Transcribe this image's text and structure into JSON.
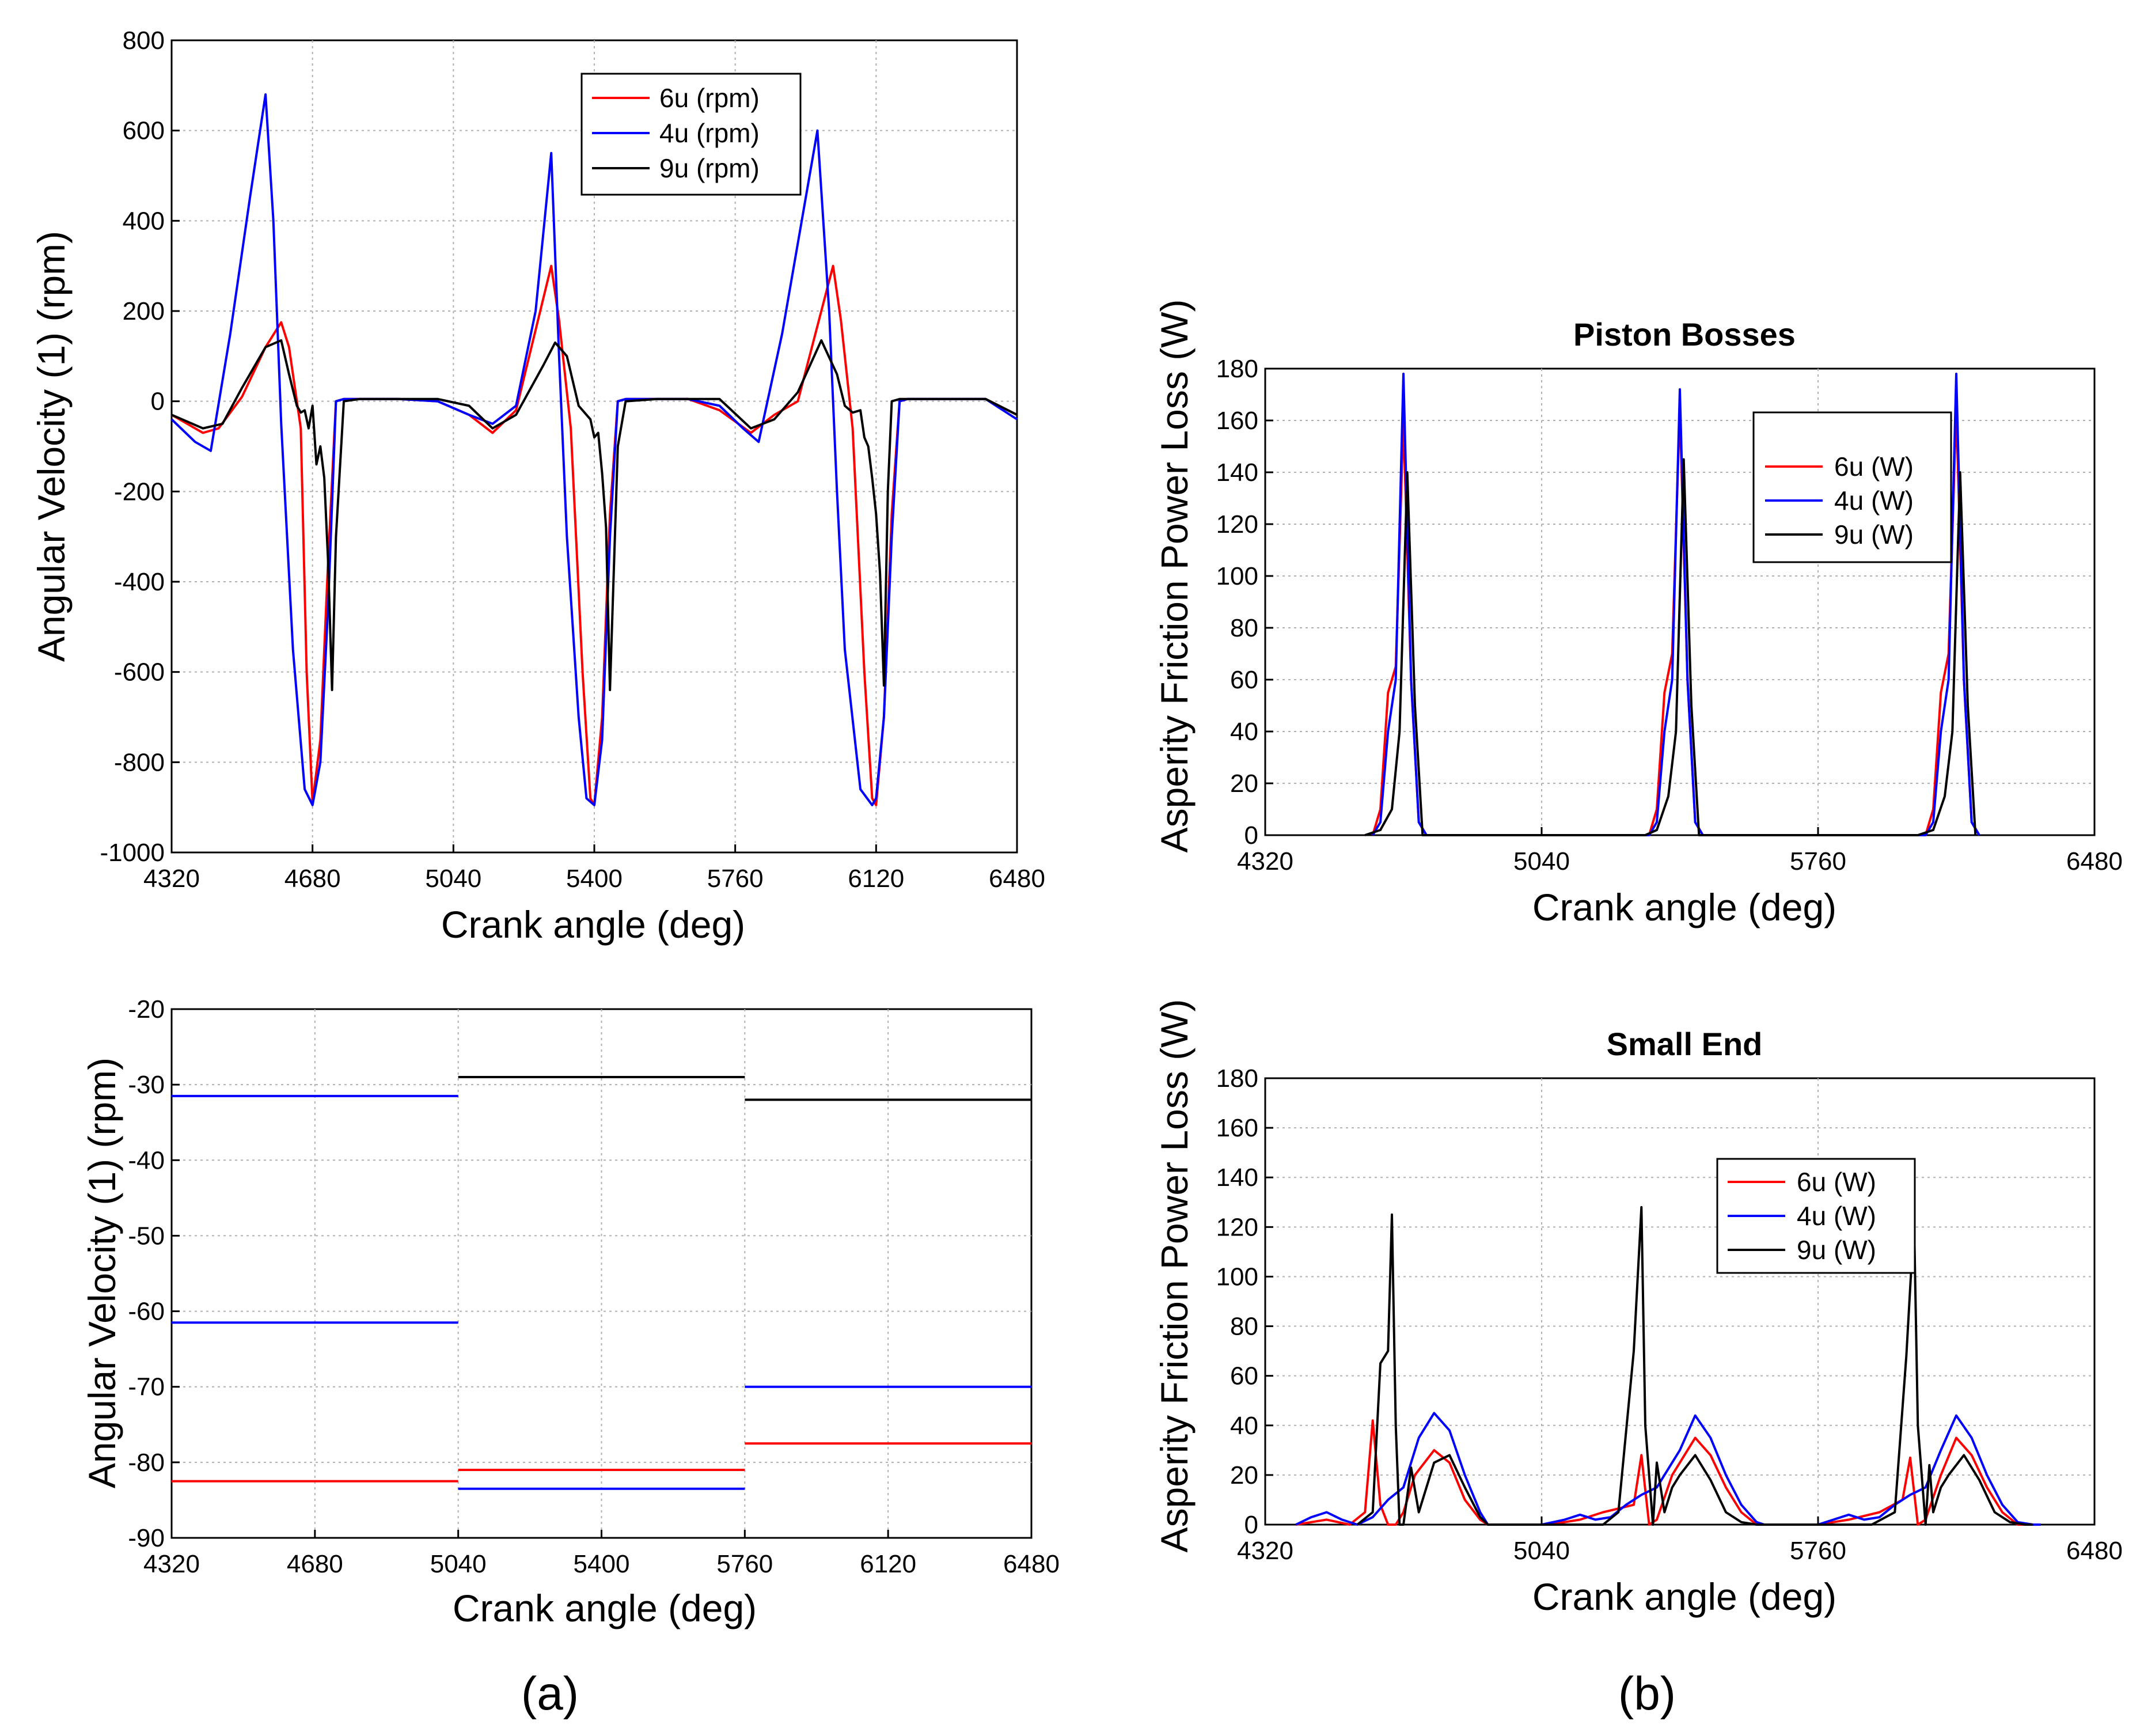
{
  "captions": {
    "a": "(a)",
    "b": "(b)"
  },
  "chart_data": [
    {
      "id": "a_top",
      "type": "line",
      "title": "",
      "xlabel": "Crank angle (deg)",
      "ylabel": "Angular Velocity (1) (rpm)",
      "xlim": [
        4320,
        6480
      ],
      "ylim": [
        -1000,
        800
      ],
      "xticks": [
        4320,
        4680,
        5040,
        5400,
        5760,
        6120,
        6480
      ],
      "yticks": [
        -1000,
        -800,
        -600,
        -400,
        -200,
        0,
        200,
        400,
        600,
        800
      ],
      "grid": true,
      "legend_position": "top-right",
      "series": [
        {
          "name": "6u (rpm)",
          "color": "#ff0000",
          "x": [
            4320,
            4400,
            4440,
            4500,
            4560,
            4600,
            4620,
            4650,
            4665,
            4680,
            4700,
            4720,
            4740,
            4760,
            4800,
            4900,
            5000,
            5080,
            5140,
            5200,
            5290,
            5310,
            5340,
            5370,
            5390,
            5400,
            5420,
            5440,
            5460,
            5480,
            5560,
            5640,
            5720,
            5800,
            5860,
            5920,
            6010,
            6030,
            6060,
            6090,
            6110,
            6120,
            6140,
            6160,
            6180,
            6200,
            6300,
            6400,
            6480
          ],
          "values": [
            -30,
            -70,
            -60,
            10,
            120,
            175,
            120,
            -60,
            -600,
            -890,
            -750,
            -350,
            0,
            5,
            5,
            5,
            0,
            -30,
            -70,
            -20,
            300,
            180,
            -60,
            -600,
            -880,
            -895,
            -700,
            -250,
            0,
            5,
            5,
            5,
            -20,
            -70,
            -30,
            0,
            300,
            180,
            -60,
            -600,
            -880,
            -895,
            -700,
            -250,
            0,
            5,
            5,
            5,
            -30
          ]
        },
        {
          "name": "4u (rpm)",
          "color": "#0000ff",
          "x": [
            4320,
            4380,
            4420,
            4470,
            4520,
            4560,
            4580,
            4600,
            4630,
            4660,
            4680,
            4700,
            4720,
            4740,
            4760,
            4800,
            4900,
            5000,
            5080,
            5140,
            5200,
            5250,
            5290,
            5310,
            5330,
            5360,
            5380,
            5400,
            5420,
            5440,
            5460,
            5480,
            5560,
            5640,
            5720,
            5780,
            5820,
            5880,
            5930,
            5970,
            6000,
            6020,
            6040,
            6080,
            6110,
            6120,
            6140,
            6160,
            6180,
            6200,
            6300,
            6400,
            6480
          ],
          "values": [
            -40,
            -90,
            -110,
            150,
            450,
            680,
            400,
            -50,
            -550,
            -860,
            -895,
            -800,
            -450,
            0,
            5,
            5,
            5,
            0,
            -30,
            -50,
            -10,
            200,
            550,
            100,
            -300,
            -700,
            -880,
            -895,
            -750,
            -300,
            0,
            5,
            5,
            5,
            -10,
            -60,
            -90,
            150,
            400,
            600,
            200,
            -200,
            -550,
            -860,
            -895,
            -880,
            -700,
            -300,
            0,
            5,
            5,
            5,
            -40
          ]
        },
        {
          "name": "9u (rpm)",
          "color": "#000000",
          "x": [
            4320,
            4400,
            4450,
            4500,
            4560,
            4600,
            4620,
            4640,
            4650,
            4660,
            4670,
            4680,
            4690,
            4700,
            4710,
            4720,
            4730,
            4740,
            4760,
            4800,
            4900,
            5000,
            5080,
            5140,
            5200,
            5270,
            5300,
            5330,
            5360,
            5380,
            5390,
            5400,
            5410,
            5420,
            5430,
            5440,
            5460,
            5480,
            5560,
            5640,
            5720,
            5800,
            5860,
            5920,
            5980,
            6020,
            6040,
            6060,
            6080,
            6090,
            6100,
            6110,
            6120,
            6130,
            6140,
            6150,
            6160,
            6180,
            6200,
            6300,
            6400,
            6480
          ],
          "values": [
            -30,
            -60,
            -50,
            30,
            120,
            135,
            60,
            -10,
            -25,
            -20,
            -60,
            -10,
            -140,
            -100,
            -170,
            -360,
            -640,
            -300,
            0,
            5,
            5,
            5,
            -10,
            -60,
            -30,
            80,
            130,
            100,
            -10,
            -30,
            -40,
            -80,
            -70,
            -160,
            -280,
            -640,
            -100,
            0,
            5,
            5,
            5,
            -60,
            -40,
            20,
            135,
            60,
            -10,
            -25,
            -20,
            -80,
            -100,
            -170,
            -250,
            -380,
            -630,
            -200,
            0,
            5,
            5,
            5,
            5,
            -30
          ]
        }
      ]
    },
    {
      "id": "a_bottom",
      "type": "line",
      "title": "",
      "xlabel": "Crank angle (deg)",
      "ylabel": "Angular Velocity (1) (rpm)",
      "xlim": [
        4320,
        6480
      ],
      "ylim": [
        -90,
        -20
      ],
      "xticks": [
        4320,
        4680,
        5040,
        5400,
        5760,
        6120,
        6480
      ],
      "yticks": [
        -90,
        -80,
        -70,
        -60,
        -50,
        -40,
        -30,
        -20
      ],
      "grid": true,
      "segments": [
        {
          "color": "#0000ff",
          "x": [
            4320,
            5040
          ],
          "y": -31.5
        },
        {
          "color": "#0000ff",
          "x": [
            4320,
            5040
          ],
          "y": -61.5
        },
        {
          "color": "#ff0000",
          "x": [
            4320,
            5040
          ],
          "y": -82.5
        },
        {
          "color": "#000000",
          "x": [
            5040,
            5760
          ],
          "y": -29
        },
        {
          "color": "#ff0000",
          "x": [
            5040,
            5760
          ],
          "y": -81
        },
        {
          "color": "#0000ff",
          "x": [
            5040,
            5760
          ],
          "y": -83.5
        },
        {
          "color": "#000000",
          "x": [
            5760,
            6480
          ],
          "y": -32
        },
        {
          "color": "#0000ff",
          "x": [
            5760,
            6480
          ],
          "y": -70
        },
        {
          "color": "#ff0000",
          "x": [
            5760,
            6480
          ],
          "y": -77.5
        }
      ]
    },
    {
      "id": "b_top",
      "type": "line",
      "title": "Piston Bosses",
      "xlabel": "Crank angle (deg)",
      "ylabel": "Asperity Friction Power Loss (W)",
      "xlim": [
        4320,
        6480
      ],
      "ylim": [
        0,
        180
      ],
      "xticks": [
        4320,
        5040,
        5760,
        6480
      ],
      "yticks": [
        0,
        20,
        40,
        60,
        80,
        100,
        120,
        140,
        160,
        180
      ],
      "grid": true,
      "legend_position": "top-right",
      "series": [
        {
          "name": "6u (W)",
          "color": "#ff0000",
          "x": [
            4600,
            4620,
            4640,
            4660,
            4680,
            4700,
            4720,
            4740,
            5320,
            5340,
            5360,
            5380,
            5400,
            5420,
            5440,
            5460,
            6040,
            6060,
            6080,
            6100,
            6120,
            6140,
            6160,
            6180
          ],
          "values": [
            0,
            10,
            55,
            65,
            160,
            60,
            5,
            0,
            0,
            10,
            55,
            70,
            165,
            60,
            5,
            0,
            0,
            10,
            55,
            70,
            165,
            60,
            5,
            0
          ]
        },
        {
          "name": "4u (W)",
          "color": "#0000ff",
          "x": [
            4600,
            4620,
            4640,
            4660,
            4680,
            4700,
            4720,
            4740,
            5320,
            5340,
            5360,
            5380,
            5400,
            5420,
            5440,
            5460,
            6040,
            6060,
            6080,
            6100,
            6120,
            6140,
            6160,
            6180
          ],
          "values": [
            0,
            5,
            40,
            60,
            178,
            60,
            5,
            0,
            0,
            5,
            40,
            60,
            172,
            60,
            5,
            0,
            0,
            5,
            40,
            60,
            178,
            60,
            5,
            0
          ]
        },
        {
          "name": "9u (W)",
          "color": "#000000",
          "x": [
            4580,
            4620,
            4650,
            4670,
            4690,
            4710,
            4730,
            5310,
            5340,
            5370,
            5390,
            5410,
            5430,
            5450,
            6020,
            6060,
            6090,
            6110,
            6130,
            6150,
            6170
          ],
          "values": [
            0,
            2,
            10,
            40,
            140,
            50,
            0,
            0,
            2,
            15,
            40,
            145,
            50,
            0,
            0,
            2,
            15,
            40,
            140,
            50,
            0
          ]
        }
      ]
    },
    {
      "id": "b_bottom",
      "type": "line",
      "title": "Small End",
      "xlabel": "Crank angle (deg)",
      "ylabel": "Asperity Friction Power Loss (W)",
      "xlim": [
        4320,
        6480
      ],
      "ylim": [
        0,
        180
      ],
      "xticks": [
        4320,
        5040,
        5760,
        6480
      ],
      "yticks": [
        0,
        20,
        40,
        60,
        80,
        100,
        120,
        140,
        160,
        180
      ],
      "grid": true,
      "legend_position": "top-right",
      "series": [
        {
          "name": "6u (W)",
          "color": "#ff0000",
          "x": [
            4400,
            4480,
            4540,
            4580,
            4600,
            4620,
            4640,
            4660,
            4680,
            4710,
            4760,
            4800,
            4840,
            4880,
            4900,
            5060,
            5140,
            5200,
            5280,
            5300,
            5320,
            5340,
            5380,
            5440,
            5480,
            5520,
            5560,
            5600,
            5620,
            5760,
            5840,
            5920,
            5980,
            6000,
            6020,
            6040,
            6080,
            6120,
            6160,
            6200,
            6240,
            6280,
            6320,
            6340
          ],
          "values": [
            0,
            2,
            0,
            5,
            42,
            8,
            0,
            0,
            5,
            20,
            30,
            25,
            10,
            2,
            0,
            0,
            2,
            5,
            8,
            28,
            0,
            2,
            20,
            35,
            28,
            15,
            5,
            0,
            0,
            0,
            2,
            5,
            10,
            27,
            0,
            2,
            20,
            35,
            28,
            15,
            5,
            0,
            0,
            0
          ]
        },
        {
          "name": "4u (W)",
          "color": "#0000ff",
          "x": [
            4400,
            4440,
            4480,
            4520,
            4560,
            4600,
            4640,
            4680,
            4720,
            4760,
            4800,
            4840,
            4880,
            4900,
            5040,
            5100,
            5140,
            5180,
            5220,
            5260,
            5300,
            5340,
            5400,
            5440,
            5480,
            5520,
            5560,
            5600,
            5620,
            5760,
            5800,
            5840,
            5880,
            5920,
            5960,
            6000,
            6040,
            6080,
            6120,
            6160,
            6200,
            6240,
            6280,
            6320,
            6340
          ],
          "values": [
            0,
            3,
            5,
            2,
            0,
            3,
            10,
            15,
            35,
            45,
            38,
            20,
            5,
            0,
            0,
            2,
            4,
            2,
            3,
            8,
            12,
            15,
            30,
            44,
            35,
            20,
            8,
            1,
            0,
            0,
            2,
            4,
            2,
            3,
            8,
            12,
            15,
            30,
            44,
            35,
            20,
            8,
            1,
            0,
            0
          ]
        },
        {
          "name": "9u (W)",
          "color": "#000000",
          "x": [
            4560,
            4600,
            4620,
            4640,
            4650,
            4660,
            4670,
            4680,
            4700,
            4720,
            4740,
            4760,
            4800,
            4840,
            4880,
            4900,
            5200,
            5240,
            5280,
            5300,
            5310,
            5330,
            5340,
            5360,
            5380,
            5400,
            5440,
            5480,
            5520,
            5560,
            5600,
            5620,
            5900,
            5960,
            5990,
            6010,
            6020,
            6040,
            6050,
            6060,
            6080,
            6100,
            6140,
            6180,
            6220,
            6260,
            6300,
            6320
          ],
          "values": [
            0,
            5,
            65,
            70,
            125,
            40,
            0,
            0,
            23,
            5,
            15,
            25,
            28,
            15,
            3,
            0,
            0,
            5,
            70,
            128,
            40,
            0,
            25,
            5,
            15,
            20,
            28,
            18,
            5,
            1,
            0,
            0,
            0,
            5,
            68,
            123,
            40,
            0,
            24,
            5,
            15,
            20,
            28,
            18,
            5,
            1,
            0,
            0
          ]
        }
      ]
    }
  ]
}
